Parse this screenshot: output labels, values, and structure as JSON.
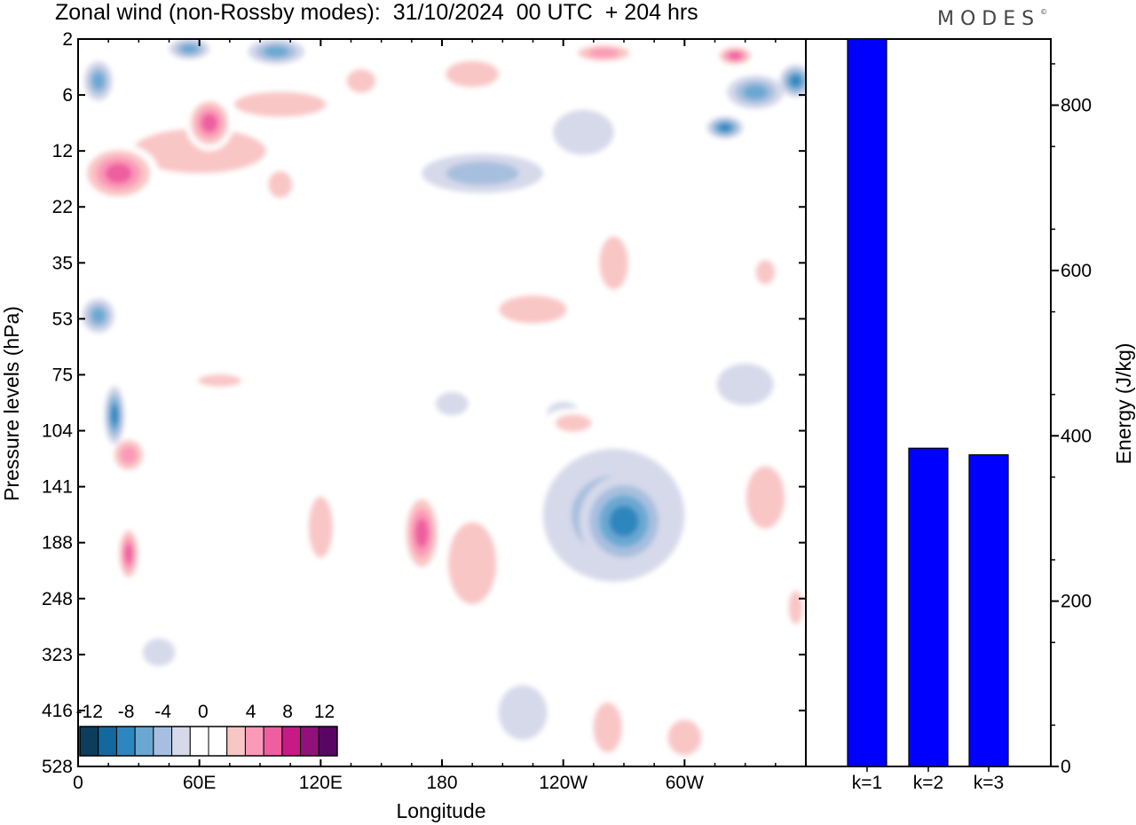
{
  "header": {
    "title": "Zonal wind (non-Rossby modes):  31/10/2024  00 UTC  + 204 hrs",
    "logo": "MODES",
    "logo_mark": "©"
  },
  "chart_data": [
    {
      "type": "heatmap",
      "title": "Zonal wind (non-Rossby modes):  31/10/2024  00 UTC  + 204 hrs",
      "xlabel": "Longitude",
      "ylabel": "Pressure levels (hPa)",
      "x_ticks": [
        "0",
        "60E",
        "120E",
        "180",
        "120W",
        "60W"
      ],
      "x_tick_values": [
        0,
        60,
        120,
        180,
        240,
        300
      ],
      "xlim": [
        0,
        360
      ],
      "y_ticks": [
        "2",
        "6",
        "12",
        "22",
        "35",
        "53",
        "75",
        "104",
        "141",
        "188",
        "248",
        "323",
        "416",
        "528"
      ],
      "y_scale": "model levels (top to bottom)",
      "colorbar": {
        "labels": [
          "-12",
          "-8",
          "-4",
          "0",
          "4",
          "8",
          "12"
        ],
        "colors": [
          "#0d3d5c",
          "#13689e",
          "#2e86bf",
          "#6aa8d2",
          "#a7bfde",
          "#d6d9ea",
          "#ffffff",
          "#ffffff",
          "#f9c6c6",
          "#fb9ab8",
          "#ee5f9f",
          "#c71a87",
          "#92107a",
          "#5a0466"
        ]
      },
      "blobs": [
        {
          "x": 10,
          "y": 5.0,
          "rx": 7,
          "ry": 1.5,
          "v": -6
        },
        {
          "x": 55,
          "y": 2.7,
          "rx": 10,
          "ry": 0.8,
          "v": -5
        },
        {
          "x": 98,
          "y": 2.9,
          "rx": 14,
          "ry": 0.9,
          "v": -6
        },
        {
          "x": 335,
          "y": 5.8,
          "rx": 14,
          "ry": 1.4,
          "v": -5
        },
        {
          "x": 355,
          "y": 5.0,
          "rx": 8,
          "ry": 1.2,
          "v": -8
        },
        {
          "x": 320,
          "y": 9.5,
          "rx": 9,
          "ry": 1.2,
          "v": -7
        },
        {
          "x": 200,
          "y": 16,
          "rx": 30,
          "ry": 3.5,
          "v": -3
        },
        {
          "x": 250,
          "y": 10,
          "rx": 15,
          "ry": 2.5,
          "v": -2
        },
        {
          "x": 10,
          "y": 52,
          "rx": 8,
          "ry": 6,
          "v": -6
        },
        {
          "x": 18,
          "y": 96,
          "rx": 5,
          "ry": 16,
          "v": -7
        },
        {
          "x": 265,
          "y": 165,
          "rx": 35,
          "ry": 55,
          "v": -4
        },
        {
          "x": 270,
          "y": 170,
          "rx": 22,
          "ry": 40,
          "v": -8
        },
        {
          "x": 220,
          "y": 420,
          "rx": 12,
          "ry": 50,
          "v": -2
        },
        {
          "x": 330,
          "y": 80,
          "rx": 14,
          "ry": 10,
          "v": -2
        },
        {
          "x": 240,
          "y": 95,
          "rx": 8,
          "ry": 6,
          "v": -2
        },
        {
          "x": 185,
          "y": 90,
          "rx": 8,
          "ry": 6,
          "v": -2
        },
        {
          "x": 60,
          "y": 12,
          "rx": 55,
          "ry": 5,
          "v": 4
        },
        {
          "x": 20,
          "y": 16,
          "rx": 20,
          "ry": 5,
          "v": 7
        },
        {
          "x": 65,
          "y": 9,
          "rx": 12,
          "ry": 3,
          "v": 7
        },
        {
          "x": 100,
          "y": 7,
          "rx": 38,
          "ry": 2,
          "v": 3
        },
        {
          "x": 140,
          "y": 5,
          "rx": 12,
          "ry": 1.5,
          "v": 4
        },
        {
          "x": 195,
          "y": 4.5,
          "rx": 22,
          "ry": 1.6,
          "v": 4
        },
        {
          "x": 260,
          "y": 3.0,
          "rx": 18,
          "ry": 0.8,
          "v": 6
        },
        {
          "x": 325,
          "y": 3.2,
          "rx": 10,
          "ry": 0.8,
          "v": 7
        },
        {
          "x": 100,
          "y": 18,
          "rx": 10,
          "ry": 4,
          "v": 4
        },
        {
          "x": 225,
          "y": 50,
          "rx": 28,
          "ry": 8,
          "v": 3
        },
        {
          "x": 265,
          "y": 35,
          "rx": 12,
          "ry": 12,
          "v": 3
        },
        {
          "x": 340,
          "y": 38,
          "rx": 8,
          "ry": 6,
          "v": 4
        },
        {
          "x": 25,
          "y": 120,
          "rx": 10,
          "ry": 14,
          "v": 6
        },
        {
          "x": 25,
          "y": 200,
          "rx": 6,
          "ry": 30,
          "v": 8
        },
        {
          "x": 170,
          "y": 180,
          "rx": 10,
          "ry": 40,
          "v": 7
        },
        {
          "x": 195,
          "y": 210,
          "rx": 20,
          "ry": 70,
          "v": 3
        },
        {
          "x": 120,
          "y": 175,
          "rx": 10,
          "ry": 45,
          "v": 3
        },
        {
          "x": 340,
          "y": 150,
          "rx": 16,
          "ry": 40,
          "v": 3
        },
        {
          "x": 355,
          "y": 260,
          "rx": 6,
          "ry": 35,
          "v": 4
        },
        {
          "x": 262,
          "y": 450,
          "rx": 12,
          "ry": 80,
          "v": 3
        },
        {
          "x": 300,
          "y": 470,
          "rx": 14,
          "ry": 60,
          "v": 3
        },
        {
          "x": 245,
          "y": 100,
          "rx": 15,
          "ry": 8,
          "v": 3
        },
        {
          "x": 70,
          "y": 78,
          "rx": 18,
          "ry": 5,
          "v": 3
        },
        {
          "x": 40,
          "y": 320,
          "rx": 8,
          "ry": 20,
          "v": -2
        }
      ]
    },
    {
      "type": "bar",
      "categories": [
        "k=1",
        "k=2",
        "k=3"
      ],
      "values": [
        880,
        385,
        377
      ],
      "ylabel": "Energy (J/kg)",
      "ylim": [
        0,
        880
      ],
      "y_ticks": [
        0,
        200,
        400,
        600,
        800
      ],
      "bar_color": "#0000ff"
    }
  ]
}
